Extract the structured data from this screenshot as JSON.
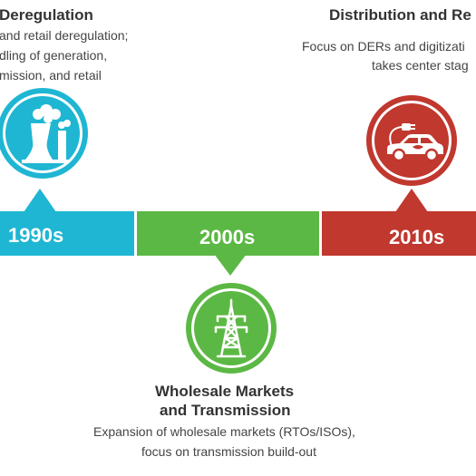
{
  "colors": {
    "blue": "#1fb6d3",
    "green": "#5cb844",
    "red": "#c0382e"
  },
  "eras": [
    {
      "label": "1990s",
      "title_lines": [
        "Deregulation"
      ],
      "description_lines": [
        "and retail deregulation;",
        "dling of generation,",
        "mission, and retail"
      ],
      "icon": "power-plant-icon"
    },
    {
      "label": "2000s",
      "title_lines": [
        "Wholesale Markets",
        "and Transmission"
      ],
      "description_lines": [
        "Expansion of wholesale markets (RTOs/ISOs),",
        "focus on transmission build-out"
      ],
      "icon": "transmission-tower-icon"
    },
    {
      "label": "2010s",
      "title_lines": [
        "Distribution and Re"
      ],
      "description_lines": [
        "Focus on DERs and digitizati",
        "takes center stag"
      ],
      "icon": "electric-car-icon"
    }
  ]
}
